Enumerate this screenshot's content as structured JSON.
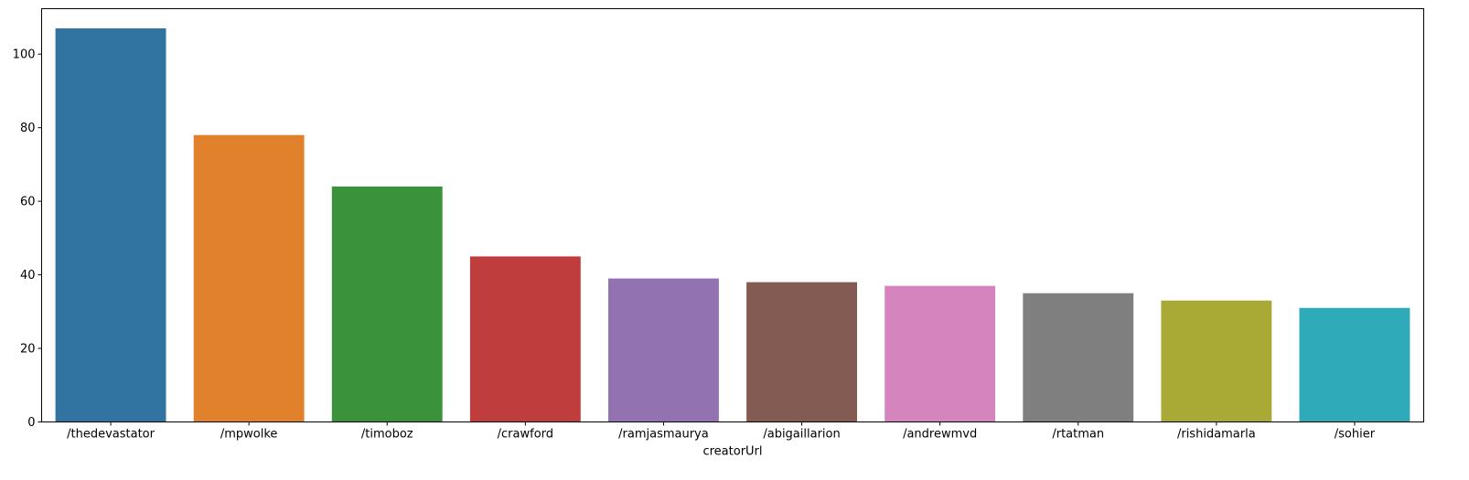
{
  "chart_data": {
    "type": "bar",
    "title": "",
    "xlabel": "creatorUrl",
    "ylabel": "",
    "categories": [
      "/thedevastator",
      "/mpwolke",
      "/timoboz",
      "/crawford",
      "/ramjasmaurya",
      "/abigaillarion",
      "/andrewmvd",
      "/rtatman",
      "/rishidamarla",
      "/sohier"
    ],
    "values": [
      107,
      78,
      64,
      45,
      39,
      38,
      37,
      35,
      33,
      31
    ],
    "colors": [
      "#3274a1",
      "#e1812c",
      "#3a923a",
      "#c03d3e",
      "#9372b2",
      "#845b53",
      "#d684bd",
      "#7f7f7f",
      "#a9aa35",
      "#2eaab8"
    ],
    "ylim": [
      0,
      112.35
    ],
    "yticks": [
      0,
      20,
      40,
      60,
      80,
      100
    ],
    "grid": false,
    "legend": "none"
  }
}
